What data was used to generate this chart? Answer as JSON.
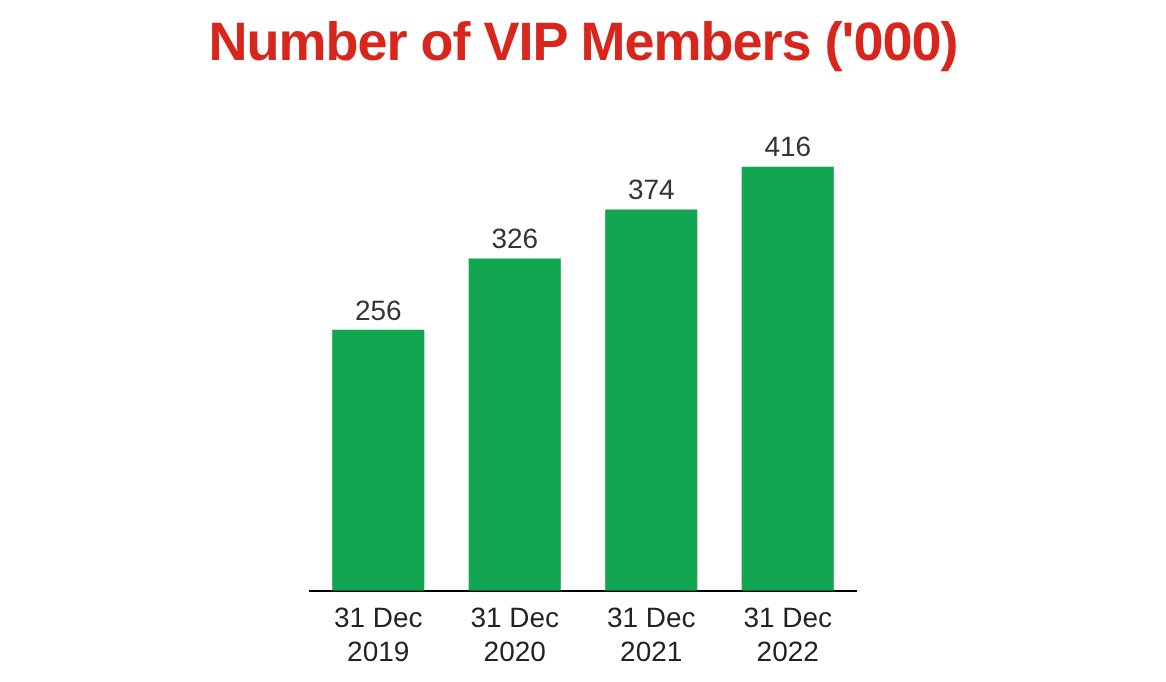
{
  "chart_data": {
    "type": "bar",
    "title": "Number of VIP Members ('000)",
    "categories": [
      "31 Dec 2019",
      "31 Dec 2020",
      "31 Dec 2021",
      "31 Dec 2022"
    ],
    "values": [
      256,
      326,
      374,
      416
    ],
    "color": "#13a650",
    "data_labels": true,
    "grid": false,
    "legend": false
  }
}
